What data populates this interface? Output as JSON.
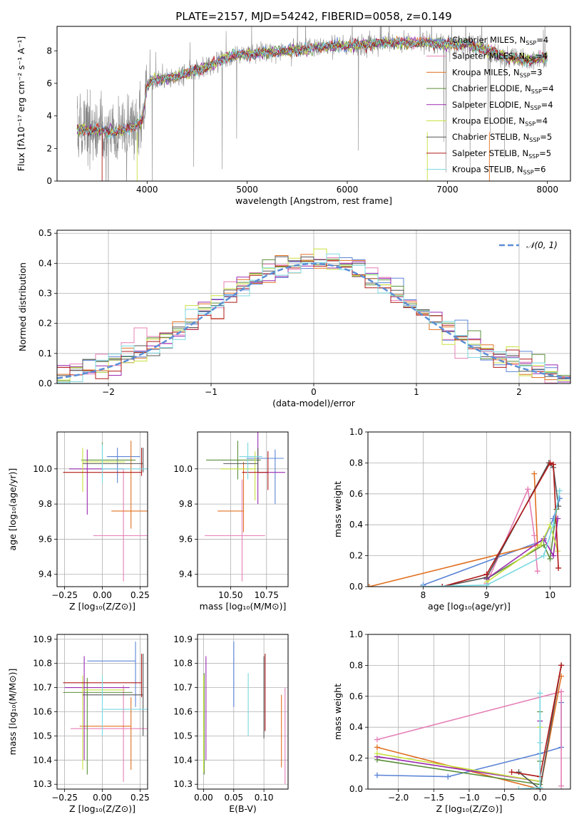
{
  "figure": {
    "title": "PLATE=2157, MJD=54242, FIBERID=0058, z=0.149"
  },
  "colors": {
    "chabrier_miles": "#5b84d6",
    "salpeter_miles": "#e57fb6",
    "kroupa_miles": "#e07020",
    "chabrier_elodie": "#5a8f3a",
    "salpeter_elodie": "#9a2ab0",
    "kroupa_elodie": "#c8e040",
    "chabrier_stelib": "#555555",
    "salpeter_stelib": "#b01818",
    "kroupa_stelib": "#7ad8e0",
    "spectrum": "#888888",
    "normal": "#5b8ed6"
  },
  "legend_spectrum": [
    {
      "key": "chabrier_miles",
      "pre": "Chabrier MILES, N",
      "sub": "SSP",
      "post": "=4"
    },
    {
      "key": "salpeter_miles",
      "pre": "Salpeter MILES, N",
      "sub": "SSP",
      "post": "=4"
    },
    {
      "key": "kroupa_miles",
      "pre": "Kroupa MILES, N",
      "sub": "SSP",
      "post": "=3"
    },
    {
      "key": "chabrier_elodie",
      "pre": "Chabrier ELODIE, N",
      "sub": "SSP",
      "post": "=4"
    },
    {
      "key": "salpeter_elodie",
      "pre": "Salpeter ELODIE, N",
      "sub": "SSP",
      "post": "=4"
    },
    {
      "key": "kroupa_elodie",
      "pre": "Kroupa ELODIE, N",
      "sub": "SSP",
      "post": "=4"
    },
    {
      "key": "chabrier_stelib",
      "pre": "Chabrier STELIB, N",
      "sub": "SSP",
      "post": "=5"
    },
    {
      "key": "salpeter_stelib",
      "pre": "Salpeter STELIB, N",
      "sub": "SSP",
      "post": "=5"
    },
    {
      "key": "kroupa_stelib",
      "pre": "Kroupa STELIB, N",
      "sub": "SSP",
      "post": "=6"
    }
  ],
  "chart_data": [
    {
      "id": "spectrum",
      "type": "line",
      "xlabel": "wavelength [Angstrom, rest frame]",
      "ylabel": "Flux [fλ10⁻¹⁷ erg cm⁻² s⁻¹ A⁻¹]",
      "xlim": [
        3100,
        8230
      ],
      "ylim": [
        0,
        9.5
      ],
      "xticks": [
        4000,
        5000,
        6000,
        7000,
        8000
      ],
      "yticks": [
        0,
        2,
        4,
        6,
        8
      ],
      "grid": false,
      "legend": "upper right",
      "continuum": {
        "x": [
          3300,
          3500,
          3700,
          3850,
          3950,
          4000,
          4050,
          4200,
          4400,
          4600,
          4800,
          5000,
          5200,
          5400,
          5600,
          5800,
          6000,
          6200,
          6400,
          6600,
          6800,
          7000,
          7200,
          7400,
          7600,
          7800,
          8000
        ],
        "y": [
          3.2,
          3.1,
          3.0,
          3.3,
          3.7,
          5.8,
          6.2,
          6.3,
          6.6,
          7.0,
          7.6,
          7.8,
          7.9,
          8.0,
          8.1,
          8.3,
          8.3,
          8.4,
          8.5,
          8.5,
          8.5,
          8.4,
          8.4,
          8.0,
          7.6,
          7.4,
          7.6
        ]
      }
    },
    {
      "id": "residuals",
      "type": "step",
      "xlabel": "(data-model)/error",
      "ylabel": "Normed distribution",
      "xlim": [
        -2.5,
        2.5
      ],
      "ylim": [
        0,
        0.51
      ],
      "xticks": [
        -2,
        -1,
        0,
        1,
        2
      ],
      "xtick_labels": [
        "−2",
        "−1",
        "0",
        "1",
        "2"
      ],
      "yticks": [
        0.0,
        0.1,
        0.2,
        0.3,
        0.4,
        0.5
      ],
      "ytick_labels": [
        "0.0",
        "0.1",
        "0.2",
        "0.3",
        "0.4",
        "0.5"
      ],
      "grid": true,
      "legend": "upper right",
      "legend_label": "𝒩(0, 1)",
      "bins": 40
    },
    {
      "id": "age_vs_Z",
      "type": "errorbar",
      "xlabel": "Z [log₁₀(Z/Z⊙)]",
      "ylabel": "age  [log₁₀(age/yr)]",
      "xlim": [
        -0.3,
        0.3
      ],
      "ylim": [
        9.33,
        10.21
      ],
      "xticks": [
        -0.25,
        0.0,
        0.25
      ],
      "xtick_labels": [
        "−0.25",
        "0.00",
        "0.25"
      ],
      "yticks": [
        9.4,
        9.6,
        9.8,
        10.0
      ],
      "ytick_labels": [
        "9.4",
        "9.6",
        "9.8",
        "10.0"
      ],
      "grid": true,
      "points": [
        {
          "key": "chabrier_miles",
          "x": 0.1,
          "xerr": [
            0.07,
            0.15
          ],
          "y": 10.07,
          "yerr": [
            0.15,
            0.05
          ]
        },
        {
          "key": "salpeter_miles",
          "x": 0.14,
          "xerr": [
            0.2,
            0.25
          ],
          "y": 9.62,
          "yerr": [
            0.26,
            0.38
          ]
        },
        {
          "key": "kroupa_miles",
          "x": 0.19,
          "xerr": [
            0.13,
            0.21
          ],
          "y": 9.76,
          "yerr": [
            0.1,
            0.4
          ]
        },
        {
          "key": "chabrier_elodie",
          "x": 0.0,
          "xerr": [
            0.14,
            0.22
          ],
          "y": 10.05,
          "yerr": [
            0.1,
            0.1
          ]
        },
        {
          "key": "salpeter_elodie",
          "x": -0.1,
          "xerr": [
            0.12,
            0.24
          ],
          "y": 10.0,
          "yerr": [
            0.26,
            0.11
          ]
        },
        {
          "key": "kroupa_elodie",
          "x": -0.13,
          "xerr": [
            0.0,
            0.28
          ],
          "y": 10.04,
          "yerr": [
            0.17,
            0.08
          ]
        },
        {
          "key": "chabrier_stelib",
          "x": 0.27,
          "xerr": [
            0.4,
            0.0
          ],
          "y": 10.03,
          "yerr": [
            0.05,
            0.09
          ]
        },
        {
          "key": "salpeter_stelib",
          "x": 0.26,
          "xerr": [
            0.52,
            0.0
          ],
          "y": 9.98,
          "yerr": [
            0.02,
            0.14
          ]
        },
        {
          "key": "kroupa_stelib",
          "x": 0.0,
          "xerr": [
            0.0,
            0.3
          ],
          "y": 10.0,
          "yerr": [
            0.08,
            0.14
          ]
        }
      ]
    },
    {
      "id": "age_vs_mass",
      "type": "errorbar",
      "xlabel": "mass [log₁₀(M/M⊙)]",
      "ylabel": "",
      "xlim": [
        10.27,
        10.9
      ],
      "ylim": [
        9.33,
        10.21
      ],
      "xticks": [
        10.5,
        10.75
      ],
      "xtick_labels": [
        "10.50",
        "10.75"
      ],
      "yticks": [
        9.4,
        9.6,
        9.8,
        10.0
      ],
      "ytick_labels": [
        "9.4",
        "9.6",
        "9.8",
        "10.0"
      ],
      "grid": true,
      "points": [
        {
          "key": "chabrier_miles",
          "x": 10.81,
          "xerr": [
            0.2,
            0.06
          ],
          "y": 10.06,
          "yerr": [
            0.26,
            0.05
          ]
        },
        {
          "key": "salpeter_miles",
          "x": 10.58,
          "xerr": [
            0.26,
            0.16
          ],
          "y": 9.62,
          "yerr": [
            0.26,
            0.32
          ]
        },
        {
          "key": "kroupa_miles",
          "x": 10.59,
          "xerr": [
            0.18,
            0.0
          ],
          "y": 9.76,
          "yerr": [
            0.12,
            0.28
          ]
        },
        {
          "key": "chabrier_elodie",
          "x": 10.55,
          "xerr": [
            0.22,
            0.16
          ],
          "y": 10.05,
          "yerr": [
            0.11,
            0.11
          ]
        },
        {
          "key": "salpeter_elodie",
          "x": 10.69,
          "xerr": [
            0.0,
            0.19
          ],
          "y": 9.98,
          "yerr": [
            0.18,
            0.24
          ]
        },
        {
          "key": "kroupa_elodie",
          "x": 10.67,
          "xerr": [
            0.24,
            0.0
          ],
          "y": 10.0,
          "yerr": [
            0.18,
            0.1
          ]
        },
        {
          "key": "chabrier_stelib",
          "x": 10.69,
          "xerr": [
            0.24,
            0.0
          ],
          "y": 10.03,
          "yerr": [
            0.05,
            0.09
          ]
        },
        {
          "key": "salpeter_stelib",
          "x": 10.76,
          "xerr": [
            0.18,
            0.0
          ],
          "y": 9.98,
          "yerr": [
            0.1,
            0.12
          ]
        },
        {
          "key": "kroupa_stelib",
          "x": 10.62,
          "xerr": [
            0.06,
            0.1
          ],
          "y": 10.07,
          "yerr": [
            0.13,
            0.08
          ]
        }
      ]
    },
    {
      "id": "weight_vs_age",
      "type": "line",
      "xlabel": "age  [log₁₀(age/yr)]",
      "ylabel": "mass weight",
      "xlim": [
        7.13,
        10.32
      ],
      "ylim": [
        0.0,
        1.0
      ],
      "xticks": [
        8,
        9,
        10
      ],
      "yticks": [
        0.0,
        0.2,
        0.4,
        0.6,
        0.8,
        1.0
      ],
      "ytick_labels": [
        "0.0",
        "0.2",
        "0.4",
        "0.6",
        "0.8",
        "1.0"
      ],
      "grid": true,
      "series": [
        {
          "key": "chabrier_miles",
          "x": [
            8.0,
            9.9,
            10.05,
            10.15
          ],
          "y": [
            0.01,
            0.3,
            0.44,
            0.57
          ]
        },
        {
          "key": "salpeter_miles",
          "x": [
            9.0,
            9.65,
            9.75,
            9.8
          ],
          "y": [
            0.02,
            0.63,
            0.33,
            0.1
          ]
        },
        {
          "key": "kroupa_miles",
          "x": [
            7.15,
            9.8,
            9.75
          ],
          "y": [
            0.0,
            0.27,
            0.73
          ]
        },
        {
          "key": "chabrier_elodie",
          "x": [
            9.0,
            9.9,
            10.0,
            10.1
          ],
          "y": [
            0.05,
            0.27,
            0.18,
            0.5
          ]
        },
        {
          "key": "salpeter_elodie",
          "x": [
            9.0,
            9.9,
            10.05,
            10.12
          ],
          "y": [
            0.05,
            0.31,
            0.2,
            0.44
          ]
        },
        {
          "key": "kroupa_elodie",
          "x": [
            9.0,
            9.85,
            10.0,
            10.12
          ],
          "y": [
            0.03,
            0.27,
            0.4,
            0.23
          ]
        },
        {
          "key": "chabrier_stelib",
          "x": [
            8.3,
            9.0,
            9.98,
            10.05,
            10.13
          ],
          "y": [
            0.0,
            0.06,
            0.8,
            0.77,
            0.52
          ]
        },
        {
          "key": "salpeter_stelib",
          "x": [
            8.3,
            9.0,
            10.0,
            10.05,
            10.13
          ],
          "y": [
            0.0,
            0.08,
            0.8,
            0.79,
            0.12
          ]
        },
        {
          "key": "kroupa_stelib",
          "x": [
            8.0,
            9.0,
            9.9,
            10.05,
            10.15
          ],
          "y": [
            0.0,
            0.01,
            0.2,
            0.4,
            0.62
          ]
        }
      ]
    },
    {
      "id": "mass_vs_Z",
      "type": "errorbar",
      "xlabel": "Z [log₁₀(Z/Z⊙)]",
      "ylabel": "mass [log₁₀(M/M⊙)]",
      "xlim": [
        -0.3,
        0.3
      ],
      "ylim": [
        10.28,
        10.92
      ],
      "xticks": [
        -0.25,
        0.0,
        0.25
      ],
      "xtick_labels": [
        "−0.25",
        "0.00",
        "0.25"
      ],
      "yticks": [
        10.3,
        10.4,
        10.5,
        10.6,
        10.7,
        10.8,
        10.9
      ],
      "ytick_labels": [
        "10.3",
        "10.4",
        "10.5",
        "10.6",
        "10.7",
        "10.8",
        "10.9"
      ],
      "grid": true,
      "points": [
        {
          "key": "chabrier_miles",
          "x": 0.22,
          "xerr": [
            0.32,
            0.0
          ],
          "y": 10.81,
          "yerr": [
            0.19,
            0.08
          ]
        },
        {
          "key": "salpeter_miles",
          "x": 0.14,
          "xerr": [
            0.35,
            0.16
          ],
          "y": 10.53,
          "yerr": [
            0.22,
            0.18
          ]
        },
        {
          "key": "kroupa_miles",
          "x": 0.19,
          "xerr": [
            0.34,
            0.0
          ],
          "y": 10.54,
          "yerr": [
            0.18,
            0.12
          ]
        },
        {
          "key": "chabrier_elodie",
          "x": -0.1,
          "xerr": [
            0.16,
            0.3
          ],
          "y": 10.68,
          "yerr": [
            0.34,
            0.06
          ]
        },
        {
          "key": "salpeter_elodie",
          "x": -0.12,
          "xerr": [
            0.13,
            0.3
          ],
          "y": 10.7,
          "yerr": [
            0.3,
            0.13
          ]
        },
        {
          "key": "kroupa_elodie",
          "x": -0.13,
          "xerr": [
            0.0,
            0.28
          ],
          "y": 10.69,
          "yerr": [
            0.33,
            0.06
          ]
        },
        {
          "key": "chabrier_stelib",
          "x": 0.27,
          "xerr": [
            0.4,
            0.0
          ],
          "y": 10.67,
          "yerr": [
            0.17,
            0.17
          ]
        },
        {
          "key": "salpeter_stelib",
          "x": 0.26,
          "xerr": [
            0.52,
            0.0
          ],
          "y": 10.72,
          "yerr": [
            0.06,
            0.12
          ]
        },
        {
          "key": "kroupa_stelib",
          "x": 0.0,
          "xerr": [
            0.0,
            0.3
          ],
          "y": 10.61,
          "yerr": [
            0.11,
            0.14
          ]
        }
      ]
    },
    {
      "id": "mass_vs_ebv",
      "type": "errorbar",
      "xlabel": "E(B-V)",
      "ylabel": "",
      "xlim": [
        -0.01,
        0.14
      ],
      "ylim": [
        10.28,
        10.92
      ],
      "xticks": [
        0.0,
        0.05,
        0.1
      ],
      "xtick_labels": [
        "0.00",
        "0.05",
        "0.10"
      ],
      "yticks": [
        10.3,
        10.4,
        10.5,
        10.6,
        10.7,
        10.8,
        10.9
      ],
      "ytick_labels": [
        "10.3",
        "10.4",
        "10.5",
        "10.6",
        "10.7",
        "10.8",
        "10.9"
      ],
      "grid": true,
      "points": [
        {
          "key": "chabrier_miles",
          "x": 0.05,
          "y": 10.75,
          "yerr": [
            0.13,
            0.14
          ]
        },
        {
          "key": "salpeter_miles",
          "x": 0.135,
          "y": 10.5,
          "yerr": [
            0.2,
            0.2
          ]
        },
        {
          "key": "kroupa_miles",
          "x": 0.129,
          "y": 10.52,
          "yerr": [
            0.15,
            0.15
          ]
        },
        {
          "key": "chabrier_elodie",
          "x": 0.001,
          "y": 10.55,
          "yerr": [
            0.21,
            0.21
          ]
        },
        {
          "key": "salpeter_elodie",
          "x": 0.004,
          "y": 10.62,
          "yerr": [
            0.22,
            0.21
          ]
        },
        {
          "key": "kroupa_elodie",
          "x": 0.0,
          "y": 10.55,
          "yerr": [
            0.2,
            0.2
          ]
        },
        {
          "key": "chabrier_stelib",
          "x": 0.1,
          "y": 10.66,
          "yerr": [
            0.17,
            0.17
          ]
        },
        {
          "key": "salpeter_stelib",
          "x": 0.102,
          "y": 10.68,
          "yerr": [
            0.16,
            0.16
          ]
        },
        {
          "key": "kroupa_stelib",
          "x": 0.074,
          "y": 10.63,
          "yerr": [
            0.13,
            0.13
          ]
        }
      ]
    },
    {
      "id": "weight_vs_Z",
      "type": "line",
      "xlabel": "Z [log₁₀(Z/Z⊙)]",
      "ylabel": "mass weight",
      "xlim": [
        -2.43,
        0.43
      ],
      "ylim": [
        0.0,
        1.0
      ],
      "xticks": [
        -2.0,
        -1.5,
        -1.0,
        -0.5,
        0.0
      ],
      "xtick_labels": [
        "−2.0",
        "−1.5",
        "−1.0",
        "−0.5",
        "0.0"
      ],
      "yticks": [
        0.0,
        0.2,
        0.4,
        0.6,
        0.8,
        1.0
      ],
      "ytick_labels": [
        "0.0",
        "0.2",
        "0.4",
        "0.6",
        "0.8",
        "1.0"
      ],
      "grid": true,
      "series": [
        {
          "key": "chabrier_miles",
          "x": [
            -2.3,
            -1.3,
            0.0,
            0.3,
            0.3
          ],
          "y": [
            0.09,
            0.08,
            0.23,
            0.27,
            0.56
          ]
        },
        {
          "key": "salpeter_miles",
          "x": [
            -2.3,
            0.3,
            0.3
          ],
          "y": [
            0.32,
            0.63,
            0.02
          ]
        },
        {
          "key": "kroupa_miles",
          "x": [
            -2.3,
            0.0,
            0.3
          ],
          "y": [
            0.27,
            0.0,
            0.73
          ]
        },
        {
          "key": "chabrier_elodie",
          "x": [
            -2.3,
            0.0,
            0.0,
            0.0
          ],
          "y": [
            0.19,
            0.03,
            0.5,
            0.18
          ]
        },
        {
          "key": "salpeter_elodie",
          "x": [
            -2.3,
            0.0,
            0.0
          ],
          "y": [
            0.21,
            0.05,
            0.44
          ]
        },
        {
          "key": "kroupa_elodie",
          "x": [
            -2.3,
            0.0,
            0.0
          ],
          "y": [
            0.23,
            0.05,
            0.4
          ]
        },
        {
          "key": "chabrier_stelib",
          "x": [
            -0.3,
            0.0,
            0.3
          ],
          "y": [
            0.11,
            0.0,
            0.8
          ]
        },
        {
          "key": "salpeter_stelib",
          "x": [
            -0.4,
            0.0,
            0.3
          ],
          "y": [
            0.11,
            0.08,
            0.8
          ]
        },
        {
          "key": "kroupa_stelib",
          "x": [
            -0.3,
            0.0,
            0.0,
            0.0
          ],
          "y": [
            0.0,
            0.01,
            0.3,
            0.62
          ]
        }
      ]
    }
  ]
}
